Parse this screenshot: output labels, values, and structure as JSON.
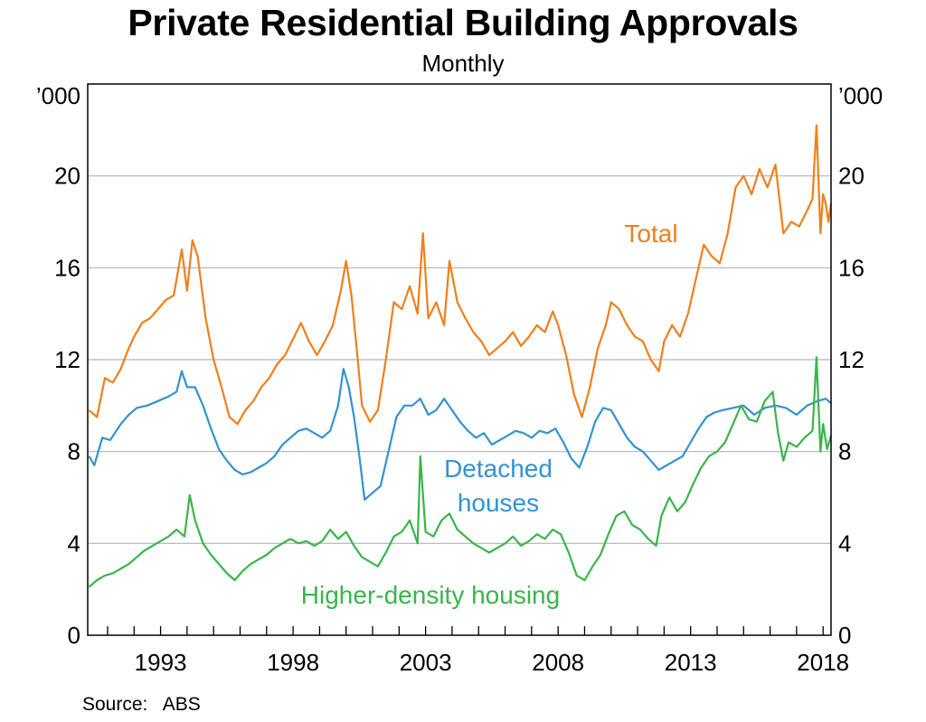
{
  "title": "Private Residential Building Approvals",
  "subtitle": "Monthly",
  "source": "Source:   ABS",
  "chart_data": {
    "type": "line",
    "title": "Private Residential Building Approvals",
    "subtitle": "Monthly",
    "units_left": "’000",
    "units_right": "’000",
    "ylim": [
      0,
      24
    ],
    "yticks": [
      0,
      4,
      8,
      12,
      16,
      20
    ],
    "xlim": [
      1990.25,
      2018.3
    ],
    "xticks": [
      1993,
      1998,
      2003,
      2008,
      2013,
      2018
    ],
    "grid": true,
    "colors": {
      "total": "#f07f1b",
      "detached": "#3392d1",
      "higher": "#39b54a"
    },
    "series": [
      {
        "key": "total",
        "name": "Total",
        "label_lines": [
          "Total"
        ],
        "points": [
          [
            1990.3,
            9.8
          ],
          [
            1990.6,
            9.5
          ],
          [
            1990.9,
            11.2
          ],
          [
            1991.2,
            11.0
          ],
          [
            1991.5,
            11.6
          ],
          [
            1991.8,
            12.5
          ],
          [
            1992.0,
            13.0
          ],
          [
            1992.3,
            13.6
          ],
          [
            1992.6,
            13.8
          ],
          [
            1992.9,
            14.2
          ],
          [
            1993.2,
            14.6
          ],
          [
            1993.5,
            14.8
          ],
          [
            1993.8,
            16.8
          ],
          [
            1994.0,
            15.0
          ],
          [
            1994.2,
            17.2
          ],
          [
            1994.4,
            16.5
          ],
          [
            1994.7,
            13.8
          ],
          [
            1995.0,
            12.0
          ],
          [
            1995.3,
            10.8
          ],
          [
            1995.6,
            9.5
          ],
          [
            1995.9,
            9.2
          ],
          [
            1996.2,
            9.8
          ],
          [
            1996.5,
            10.2
          ],
          [
            1996.8,
            10.8
          ],
          [
            1997.1,
            11.2
          ],
          [
            1997.4,
            11.8
          ],
          [
            1997.7,
            12.2
          ],
          [
            1998.0,
            12.9
          ],
          [
            1998.3,
            13.6
          ],
          [
            1998.6,
            12.8
          ],
          [
            1998.9,
            12.2
          ],
          [
            1999.2,
            12.8
          ],
          [
            1999.5,
            13.5
          ],
          [
            1999.8,
            15.0
          ],
          [
            2000.0,
            16.3
          ],
          [
            2000.2,
            14.8
          ],
          [
            2000.4,
            12.5
          ],
          [
            2000.6,
            10.0
          ],
          [
            2000.9,
            9.3
          ],
          [
            2001.2,
            9.8
          ],
          [
            2001.5,
            12.0
          ],
          [
            2001.8,
            14.5
          ],
          [
            2002.1,
            14.2
          ],
          [
            2002.4,
            15.2
          ],
          [
            2002.7,
            14.0
          ],
          [
            2002.9,
            17.5
          ],
          [
            2003.1,
            13.8
          ],
          [
            2003.4,
            14.5
          ],
          [
            2003.7,
            13.5
          ],
          [
            2003.9,
            16.3
          ],
          [
            2004.2,
            14.5
          ],
          [
            2004.5,
            13.8
          ],
          [
            2004.8,
            13.2
          ],
          [
            2005.1,
            12.8
          ],
          [
            2005.4,
            12.2
          ],
          [
            2005.7,
            12.5
          ],
          [
            2006.0,
            12.8
          ],
          [
            2006.3,
            13.2
          ],
          [
            2006.6,
            12.6
          ],
          [
            2006.9,
            13.0
          ],
          [
            2007.2,
            13.5
          ],
          [
            2007.5,
            13.2
          ],
          [
            2007.8,
            14.1
          ],
          [
            2008.0,
            13.5
          ],
          [
            2008.3,
            12.2
          ],
          [
            2008.6,
            10.5
          ],
          [
            2008.9,
            9.5
          ],
          [
            2009.2,
            10.8
          ],
          [
            2009.5,
            12.5
          ],
          [
            2009.8,
            13.5
          ],
          [
            2010.0,
            14.5
          ],
          [
            2010.3,
            14.2
          ],
          [
            2010.6,
            13.5
          ],
          [
            2010.9,
            13.0
          ],
          [
            2011.2,
            12.8
          ],
          [
            2011.5,
            12.0
          ],
          [
            2011.8,
            11.5
          ],
          [
            2012.0,
            12.8
          ],
          [
            2012.3,
            13.5
          ],
          [
            2012.6,
            13.0
          ],
          [
            2012.9,
            14.0
          ],
          [
            2013.2,
            15.5
          ],
          [
            2013.5,
            17.0
          ],
          [
            2013.8,
            16.5
          ],
          [
            2014.1,
            16.2
          ],
          [
            2014.4,
            17.5
          ],
          [
            2014.7,
            19.5
          ],
          [
            2015.0,
            20.0
          ],
          [
            2015.3,
            19.2
          ],
          [
            2015.6,
            20.3
          ],
          [
            2015.9,
            19.5
          ],
          [
            2016.2,
            20.5
          ],
          [
            2016.5,
            17.5
          ],
          [
            2016.8,
            18.0
          ],
          [
            2017.1,
            17.8
          ],
          [
            2017.4,
            18.5
          ],
          [
            2017.6,
            19.0
          ],
          [
            2017.75,
            22.2
          ],
          [
            2017.9,
            17.5
          ],
          [
            2018.0,
            19.2
          ],
          [
            2018.1,
            18.8
          ],
          [
            2018.2,
            18.0
          ],
          [
            2018.3,
            18.8
          ]
        ]
      },
      {
        "key": "detached",
        "name": "Detached houses",
        "label_lines": [
          "Detached",
          "houses"
        ],
        "points": [
          [
            1990.3,
            7.8
          ],
          [
            1990.5,
            7.4
          ],
          [
            1990.8,
            8.6
          ],
          [
            1991.1,
            8.5
          ],
          [
            1991.5,
            9.2
          ],
          [
            1991.8,
            9.6
          ],
          [
            1992.1,
            9.9
          ],
          [
            1992.5,
            10.0
          ],
          [
            1992.9,
            10.2
          ],
          [
            1993.3,
            10.4
          ],
          [
            1993.6,
            10.6
          ],
          [
            1993.8,
            11.5
          ],
          [
            1994.0,
            10.8
          ],
          [
            1994.3,
            10.8
          ],
          [
            1994.6,
            10.0
          ],
          [
            1994.9,
            9.0
          ],
          [
            1995.2,
            8.1
          ],
          [
            1995.5,
            7.6
          ],
          [
            1995.8,
            7.2
          ],
          [
            1996.1,
            7.0
          ],
          [
            1996.4,
            7.1
          ],
          [
            1996.7,
            7.3
          ],
          [
            1997.0,
            7.5
          ],
          [
            1997.3,
            7.8
          ],
          [
            1997.6,
            8.3
          ],
          [
            1997.9,
            8.6
          ],
          [
            1998.2,
            8.9
          ],
          [
            1998.5,
            9.0
          ],
          [
            1998.8,
            8.8
          ],
          [
            1999.1,
            8.6
          ],
          [
            1999.4,
            8.9
          ],
          [
            1999.7,
            10.0
          ],
          [
            1999.9,
            11.6
          ],
          [
            2000.1,
            10.8
          ],
          [
            2000.3,
            9.5
          ],
          [
            2000.5,
            7.8
          ],
          [
            2000.7,
            5.9
          ],
          [
            2001.0,
            6.2
          ],
          [
            2001.3,
            6.5
          ],
          [
            2001.6,
            8.0
          ],
          [
            2001.9,
            9.5
          ],
          [
            2002.2,
            10.0
          ],
          [
            2002.5,
            10.0
          ],
          [
            2002.8,
            10.3
          ],
          [
            2003.1,
            9.6
          ],
          [
            2003.4,
            9.8
          ],
          [
            2003.7,
            10.3
          ],
          [
            2004.0,
            9.8
          ],
          [
            2004.3,
            9.3
          ],
          [
            2004.6,
            8.9
          ],
          [
            2004.9,
            8.6
          ],
          [
            2005.2,
            8.8
          ],
          [
            2005.5,
            8.3
          ],
          [
            2005.8,
            8.5
          ],
          [
            2006.1,
            8.7
          ],
          [
            2006.4,
            8.9
          ],
          [
            2006.7,
            8.8
          ],
          [
            2007.0,
            8.6
          ],
          [
            2007.3,
            8.9
          ],
          [
            2007.6,
            8.8
          ],
          [
            2007.9,
            9.0
          ],
          [
            2008.2,
            8.4
          ],
          [
            2008.5,
            7.7
          ],
          [
            2008.8,
            7.3
          ],
          [
            2009.1,
            8.2
          ],
          [
            2009.4,
            9.3
          ],
          [
            2009.7,
            9.9
          ],
          [
            2010.0,
            9.8
          ],
          [
            2010.3,
            9.2
          ],
          [
            2010.6,
            8.6
          ],
          [
            2010.9,
            8.2
          ],
          [
            2011.2,
            8.0
          ],
          [
            2011.5,
            7.6
          ],
          [
            2011.8,
            7.2
          ],
          [
            2012.1,
            7.4
          ],
          [
            2012.4,
            7.6
          ],
          [
            2012.7,
            7.8
          ],
          [
            2013.0,
            8.4
          ],
          [
            2013.3,
            9.0
          ],
          [
            2013.6,
            9.5
          ],
          [
            2013.9,
            9.7
          ],
          [
            2014.2,
            9.8
          ],
          [
            2014.6,
            9.9
          ],
          [
            2015.0,
            10.0
          ],
          [
            2015.4,
            9.6
          ],
          [
            2015.8,
            9.9
          ],
          [
            2016.2,
            10.0
          ],
          [
            2016.6,
            9.9
          ],
          [
            2017.0,
            9.6
          ],
          [
            2017.4,
            10.0
          ],
          [
            2017.8,
            10.2
          ],
          [
            2018.1,
            10.3
          ],
          [
            2018.3,
            10.1
          ]
        ]
      },
      {
        "key": "higher",
        "name": "Higher-density housing",
        "label_lines": [
          "Higher-density housing"
        ],
        "points": [
          [
            1990.3,
            2.1
          ],
          [
            1990.6,
            2.4
          ],
          [
            1990.9,
            2.6
          ],
          [
            1991.2,
            2.7
          ],
          [
            1991.5,
            2.9
          ],
          [
            1991.8,
            3.1
          ],
          [
            1992.1,
            3.4
          ],
          [
            1992.4,
            3.7
          ],
          [
            1992.7,
            3.9
          ],
          [
            1993.0,
            4.1
          ],
          [
            1993.3,
            4.3
          ],
          [
            1993.6,
            4.6
          ],
          [
            1993.9,
            4.3
          ],
          [
            1994.1,
            6.1
          ],
          [
            1994.3,
            5.0
          ],
          [
            1994.6,
            4.0
          ],
          [
            1994.9,
            3.5
          ],
          [
            1995.2,
            3.1
          ],
          [
            1995.5,
            2.7
          ],
          [
            1995.8,
            2.4
          ],
          [
            1996.1,
            2.8
          ],
          [
            1996.4,
            3.1
          ],
          [
            1996.7,
            3.3
          ],
          [
            1997.0,
            3.5
          ],
          [
            1997.3,
            3.8
          ],
          [
            1997.6,
            4.0
          ],
          [
            1997.9,
            4.2
          ],
          [
            1998.2,
            4.0
          ],
          [
            1998.5,
            4.1
          ],
          [
            1998.8,
            3.9
          ],
          [
            1999.1,
            4.1
          ],
          [
            1999.4,
            4.6
          ],
          [
            1999.7,
            4.2
          ],
          [
            2000.0,
            4.5
          ],
          [
            2000.3,
            3.9
          ],
          [
            2000.6,
            3.4
          ],
          [
            2000.9,
            3.2
          ],
          [
            2001.2,
            3.0
          ],
          [
            2001.5,
            3.6
          ],
          [
            2001.8,
            4.3
          ],
          [
            2002.1,
            4.5
          ],
          [
            2002.4,
            5.0
          ],
          [
            2002.7,
            4.0
          ],
          [
            2002.8,
            7.8
          ],
          [
            2003.0,
            4.5
          ],
          [
            2003.3,
            4.3
          ],
          [
            2003.6,
            5.0
          ],
          [
            2003.9,
            5.3
          ],
          [
            2004.2,
            4.6
          ],
          [
            2004.5,
            4.3
          ],
          [
            2004.8,
            4.0
          ],
          [
            2005.1,
            3.8
          ],
          [
            2005.4,
            3.6
          ],
          [
            2005.7,
            3.8
          ],
          [
            2006.0,
            4.0
          ],
          [
            2006.3,
            4.3
          ],
          [
            2006.6,
            3.9
          ],
          [
            2006.9,
            4.1
          ],
          [
            2007.2,
            4.4
          ],
          [
            2007.5,
            4.2
          ],
          [
            2007.8,
            4.6
          ],
          [
            2008.1,
            4.4
          ],
          [
            2008.4,
            3.6
          ],
          [
            2008.7,
            2.6
          ],
          [
            2009.0,
            2.4
          ],
          [
            2009.3,
            3.0
          ],
          [
            2009.6,
            3.5
          ],
          [
            2009.9,
            4.4
          ],
          [
            2010.2,
            5.2
          ],
          [
            2010.5,
            5.4
          ],
          [
            2010.8,
            4.8
          ],
          [
            2011.1,
            4.6
          ],
          [
            2011.4,
            4.2
          ],
          [
            2011.7,
            3.9
          ],
          [
            2011.9,
            5.2
          ],
          [
            2012.2,
            6.0
          ],
          [
            2012.5,
            5.4
          ],
          [
            2012.8,
            5.8
          ],
          [
            2013.1,
            6.6
          ],
          [
            2013.4,
            7.3
          ],
          [
            2013.7,
            7.8
          ],
          [
            2014.0,
            8.0
          ],
          [
            2014.3,
            8.4
          ],
          [
            2014.6,
            9.2
          ],
          [
            2014.9,
            10.0
          ],
          [
            2015.2,
            9.4
          ],
          [
            2015.5,
            9.3
          ],
          [
            2015.8,
            10.2
          ],
          [
            2016.1,
            10.6
          ],
          [
            2016.3,
            8.8
          ],
          [
            2016.5,
            7.6
          ],
          [
            2016.7,
            8.4
          ],
          [
            2017.0,
            8.2
          ],
          [
            2017.3,
            8.6
          ],
          [
            2017.6,
            8.9
          ],
          [
            2017.75,
            12.1
          ],
          [
            2017.9,
            8.0
          ],
          [
            2018.0,
            9.2
          ],
          [
            2018.15,
            8.1
          ],
          [
            2018.3,
            8.7
          ]
        ]
      }
    ]
  }
}
